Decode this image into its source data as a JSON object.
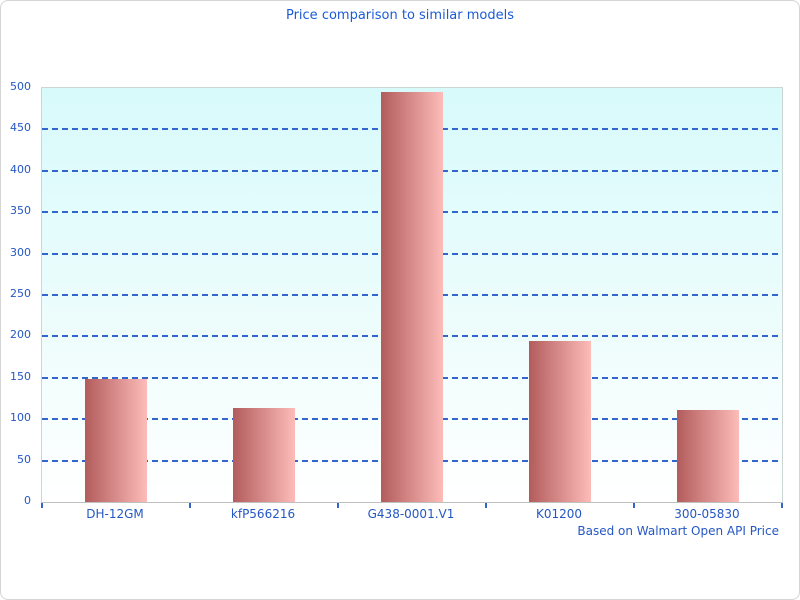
{
  "chart_data": {
    "type": "bar",
    "title": "Price comparison to similar models",
    "categories": [
      "DH-12GM",
      "kfP566216",
      "G438-0001.V1",
      "K01200",
      "300-05830"
    ],
    "values": [
      148,
      113,
      495,
      194,
      111
    ],
    "xlabel": "",
    "ylabel": "",
    "ylim": [
      0,
      500
    ],
    "ytick_step": 50,
    "yticks": [
      0,
      50,
      100,
      150,
      200,
      250,
      300,
      350,
      400,
      450,
      500
    ],
    "grid": "horizontal-dashed",
    "legend": "none",
    "annotation": "Based on Walmart Open API Price",
    "colors": {
      "title_text": "#1b5bd8",
      "axis_text": "#2457c5",
      "gridline": "#3366cc",
      "bar_gradient_left": "#b25c5c",
      "bar_gradient_right": "#fdbcb9",
      "plot_bg_top": "#d8fafb",
      "plot_bg_bottom": "#ffffff",
      "page_border": "#d4d4d4"
    }
  }
}
